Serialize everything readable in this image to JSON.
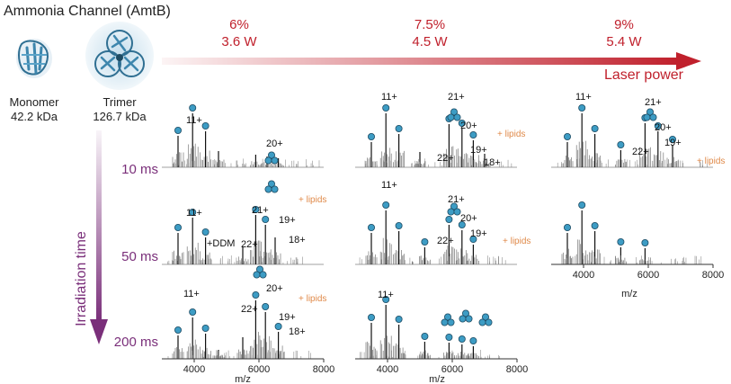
{
  "title": "Ammonia Channel (AmtB)",
  "colors": {
    "red": "#c0202c",
    "purple": "#7a2f7a",
    "dot": "#3d9cc4",
    "dot_stroke": "#1d4b63",
    "lipid": "#e08a4a",
    "spectrum": "#111111",
    "spectrum_grey": "#777777"
  },
  "structures": [
    {
      "name": "Monomer",
      "mass": "42.2 kDa"
    },
    {
      "name": "Trimer",
      "mass": "126.7 kDa"
    }
  ],
  "laser": {
    "label": "Laser power",
    "levels": [
      {
        "percent": "6%",
        "watts": "3.6 W"
      },
      {
        "percent": "7.5%",
        "watts": "4.5 W"
      },
      {
        "percent": "9%",
        "watts": "5.4 W"
      }
    ]
  },
  "irradiation": {
    "label": "Irradiation time",
    "times": [
      "10 ms",
      "50 ms",
      "200 ms"
    ]
  },
  "axis": {
    "xlabel": "m/z",
    "ticks": [
      "4000",
      "6000",
      "8000"
    ],
    "range": [
      3000,
      8000
    ]
  },
  "panels": [
    {
      "name": "6% 10ms",
      "labels": [
        "11+",
        "20+"
      ],
      "annotations": []
    },
    {
      "name": "7.5% 10ms",
      "labels": [
        "11+",
        "21+",
        "20+",
        "22+",
        "19+",
        "18+"
      ],
      "annotations": [
        "+ lipids"
      ]
    },
    {
      "name": "9% 10ms",
      "labels": [
        "11+",
        "21+",
        "20+",
        "19+",
        "22+"
      ],
      "annotations": [
        "+ lipids"
      ]
    },
    {
      "name": "6% 50ms",
      "labels": [
        "11+",
        "21+",
        "19+",
        "+DDM",
        "22+",
        "18+"
      ],
      "annotations": [
        "+ lipids"
      ]
    },
    {
      "name": "7.5% 50ms",
      "labels": [
        "11+",
        "21+",
        "20+",
        "22+",
        "19+"
      ],
      "annotations": [
        "+ lipids"
      ]
    },
    {
      "name": "9% 50ms",
      "labels": [],
      "annotations": []
    },
    {
      "name": "6% 200ms",
      "labels": [
        "11+",
        "20+",
        "22+",
        "19+",
        "18+"
      ],
      "annotations": [
        "+ lipids"
      ]
    },
    {
      "name": "7.5% 200ms",
      "labels": [
        "11+"
      ],
      "annotations": []
    }
  ]
}
